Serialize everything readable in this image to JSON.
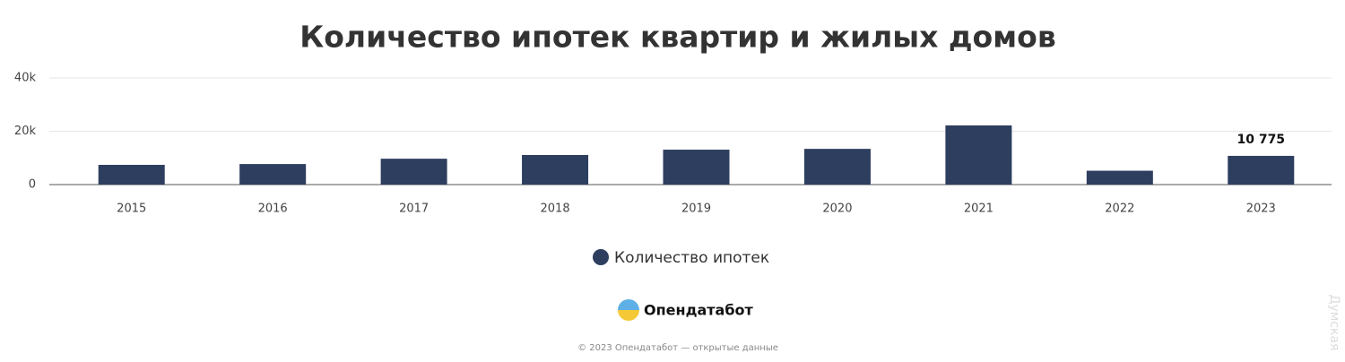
{
  "chart_data": {
    "type": "bar",
    "title": "Количество ипотек квартир и жилых домов",
    "categories": [
      "2015",
      "2016",
      "2017",
      "2018",
      "2019",
      "2020",
      "2021",
      "2022",
      "2023"
    ],
    "series": [
      {
        "name": "Количество ипотек",
        "color": "#2e3e5f",
        "values": [
          7400,
          7700,
          9700,
          11100,
          13100,
          13400,
          22200,
          5200,
          10775
        ],
        "value_labels": [
          null,
          null,
          null,
          null,
          null,
          null,
          null,
          null,
          "10 775"
        ]
      }
    ],
    "ylim": [
      0,
      40000
    ],
    "yticks": [
      0,
      {
        "value": 20000,
        "label": "20k"
      },
      {
        "value": 40000,
        "label": "40k"
      }
    ],
    "grid": true
  },
  "footer": {
    "brand": "Опендатабот",
    "copyright": "© 2023 Опендатабот — открытые данные",
    "watermark": "Думская"
  }
}
